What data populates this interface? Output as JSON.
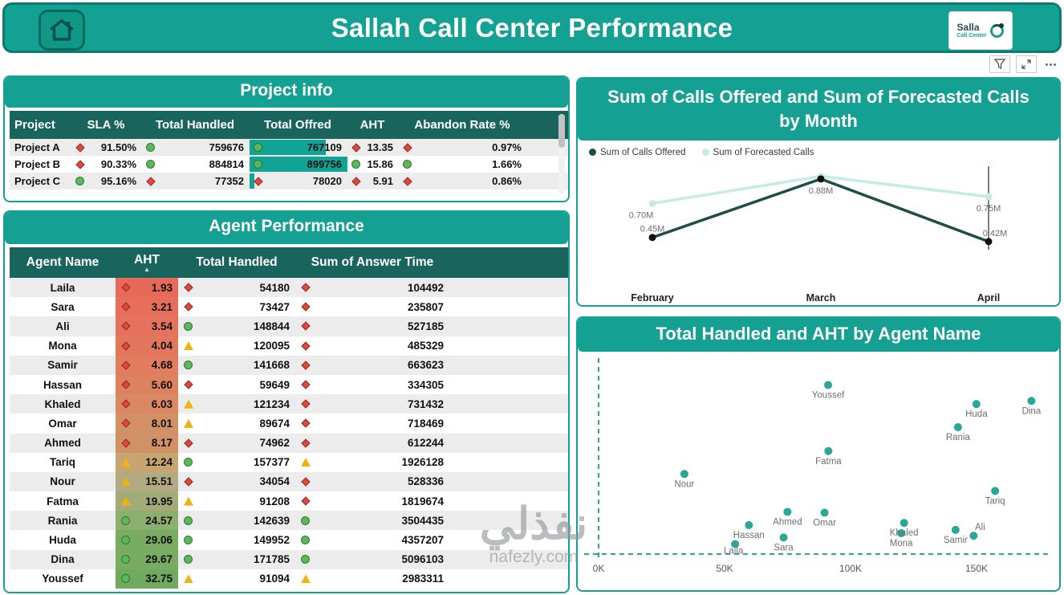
{
  "header": {
    "title": "Sallah Call Center Performance",
    "logo": {
      "line1": "Salla",
      "line2": "Call Center"
    }
  },
  "toolbar": {
    "more_label": "⋯"
  },
  "project_info": {
    "title": "Project info",
    "columns": [
      "Project",
      "SLA %",
      "Total Handled",
      "Total Offred",
      "AHT",
      "Abandon Rate %"
    ],
    "rows": [
      {
        "project": "Project A",
        "sla": {
          "icon": "diamond-red",
          "value": "91.50%"
        },
        "handled": {
          "icon": "circle-green",
          "value": "759676"
        },
        "offred": {
          "icon": "circle-green",
          "value": "767109",
          "bar_pct": 78
        },
        "aht": {
          "icon": "diamond-red",
          "value": "13.35"
        },
        "abandon": {
          "icon": "diamond-red",
          "value": "0.97%"
        }
      },
      {
        "project": "Project B",
        "sla": {
          "icon": "diamond-red",
          "value": "90.33%"
        },
        "handled": {
          "icon": "circle-green",
          "value": "884814"
        },
        "offred": {
          "icon": "circle-green",
          "value": "899756",
          "bar_pct": 100
        },
        "aht": {
          "icon": "circle-green",
          "value": "15.86"
        },
        "abandon": {
          "icon": "circle-green",
          "value": "1.66%"
        }
      },
      {
        "project": "Project C",
        "sla": {
          "icon": "circle-green",
          "value": "95.16%"
        },
        "handled": {
          "icon": "diamond-red",
          "value": "77352"
        },
        "offred": {
          "icon": "diamond-red",
          "value": "78020",
          "bar_pct": 5
        },
        "aht": {
          "icon": "diamond-red",
          "value": "5.91"
        },
        "abandon": {
          "icon": "diamond-red",
          "value": "0.86%"
        }
      }
    ]
  },
  "agent_performance": {
    "title": "Agent Performance",
    "columns": [
      "Agent Name",
      "AHT",
      "Total Handled",
      "Sum of Answer Time"
    ],
    "rows": [
      {
        "name": "Laila",
        "aht": {
          "value": "1.93",
          "bg": "#e7695a",
          "icon": "diamond-red"
        },
        "handled": {
          "icon": "diamond-red",
          "value": "54180"
        },
        "answer": {
          "icon": "diamond-red",
          "value": "104492"
        }
      },
      {
        "name": "Sara",
        "aht": {
          "value": "3.21",
          "bg": "#e66e5b",
          "icon": "diamond-red"
        },
        "handled": {
          "icon": "diamond-red",
          "value": "73427"
        },
        "answer": {
          "icon": "diamond-red",
          "value": "235807"
        }
      },
      {
        "name": "Ali",
        "aht": {
          "value": "3.54",
          "bg": "#e4725c",
          "icon": "diamond-red"
        },
        "handled": {
          "icon": "circle-green",
          "value": "148844"
        },
        "answer": {
          "icon": "diamond-red",
          "value": "527185"
        }
      },
      {
        "name": "Mona",
        "aht": {
          "value": "4.04",
          "bg": "#e3775e",
          "icon": "diamond-red"
        },
        "handled": {
          "icon": "triangle-yellow",
          "value": "120095"
        },
        "answer": {
          "icon": "diamond-red",
          "value": "485329"
        }
      },
      {
        "name": "Samir",
        "aht": {
          "value": "4.68",
          "bg": "#e17c5f",
          "icon": "diamond-red"
        },
        "handled": {
          "icon": "circle-green",
          "value": "141668"
        },
        "answer": {
          "icon": "diamond-red",
          "value": "663623"
        }
      },
      {
        "name": "Hassan",
        "aht": {
          "value": "5.60",
          "bg": "#de815f",
          "icon": "diamond-red"
        },
        "handled": {
          "icon": "diamond-red",
          "value": "59649"
        },
        "answer": {
          "icon": "diamond-red",
          "value": "334305"
        }
      },
      {
        "name": "Khaled",
        "aht": {
          "value": "6.03",
          "bg": "#da8763",
          "icon": "diamond-red"
        },
        "handled": {
          "icon": "triangle-yellow",
          "value": "121234"
        },
        "answer": {
          "icon": "diamond-red",
          "value": "731432"
        }
      },
      {
        "name": "Omar",
        "aht": {
          "value": "8.01",
          "bg": "#d29065",
          "icon": "diamond-red"
        },
        "handled": {
          "icon": "triangle-yellow",
          "value": "89674"
        },
        "answer": {
          "icon": "diamond-red",
          "value": "718469"
        }
      },
      {
        "name": "Ahmed",
        "aht": {
          "value": "8.17",
          "bg": "#d19166",
          "icon": "diamond-red"
        },
        "handled": {
          "icon": "diamond-red",
          "value": "74962"
        },
        "answer": {
          "icon": "diamond-red",
          "value": "612244"
        }
      },
      {
        "name": "Tariq",
        "aht": {
          "value": "12.24",
          "bg": "#c7a571",
          "icon": "triangle-yellow"
        },
        "handled": {
          "icon": "circle-green",
          "value": "157377"
        },
        "answer": {
          "icon": "triangle-yellow",
          "value": "1926128"
        }
      },
      {
        "name": "Nour",
        "aht": {
          "value": "15.51",
          "bg": "#b2aa80",
          "icon": "triangle-yellow"
        },
        "handled": {
          "icon": "diamond-red",
          "value": "34054"
        },
        "answer": {
          "icon": "diamond-red",
          "value": "528336"
        }
      },
      {
        "name": "Fatma",
        "aht": {
          "value": "19.95",
          "bg": "#a3ac79",
          "icon": "triangle-yellow"
        },
        "handled": {
          "icon": "triangle-yellow",
          "value": "91208"
        },
        "answer": {
          "icon": "diamond-red",
          "value": "1819674"
        }
      },
      {
        "name": "Rania",
        "aht": {
          "value": "24.57",
          "bg": "#8caf6d",
          "icon": "circle-green"
        },
        "handled": {
          "icon": "circle-green",
          "value": "142639"
        },
        "answer": {
          "icon": "circle-green",
          "value": "3504435"
        }
      },
      {
        "name": "Huda",
        "aht": {
          "value": "29.06",
          "bg": "#79ac63",
          "icon": "circle-green"
        },
        "handled": {
          "icon": "circle-green",
          "value": "149952"
        },
        "answer": {
          "icon": "circle-green",
          "value": "4357207"
        }
      },
      {
        "name": "Dina",
        "aht": {
          "value": "29.67",
          "bg": "#78ac62",
          "icon": "circle-green"
        },
        "handled": {
          "icon": "circle-green",
          "value": "171785"
        },
        "answer": {
          "icon": "circle-green",
          "value": "5096103"
        }
      },
      {
        "name": "Youssef",
        "aht": {
          "value": "32.75",
          "bg": "#6faa5e",
          "icon": "circle-green"
        },
        "handled": {
          "icon": "triangle-yellow",
          "value": "91094"
        },
        "answer": {
          "icon": "triangle-yellow",
          "value": "2983311"
        }
      }
    ]
  },
  "chart_data": [
    {
      "type": "line",
      "title": "Sum of Calls Offered and Sum of Forecasted Calls by Month",
      "categories": [
        "February",
        "March",
        "April"
      ],
      "series": [
        {
          "name": "Sum of Calls Offered",
          "color": "#1d4f49",
          "point_color": "#111111",
          "values_M": [
            0.45,
            0.88,
            0.42
          ],
          "labels": [
            "0.45M",
            "0.88M",
            "0.42M"
          ]
        },
        {
          "name": "Sum of Forecasted Calls",
          "color": "#c5ebe2",
          "point_color": "#c5ebe2",
          "values_M": [
            0.7,
            0.9,
            0.75
          ],
          "labels": [
            "0.70M",
            "",
            "0.75M"
          ]
        }
      ],
      "ylim_M": [
        0.36,
        0.95
      ],
      "legend_position": "top-left"
    },
    {
      "type": "scatter",
      "title": "Total Handled and AHT by Agent Name",
      "xlabel": "Total Handled",
      "ylabel": "AHT",
      "point_color": "#2aa796",
      "x_axis": {
        "ticks": [
          "0K",
          "50K",
          "100K",
          "150K"
        ],
        "tick_values": [
          0,
          50000,
          100000,
          150000
        ]
      },
      "ylim": [
        0,
        35
      ],
      "points": [
        {
          "name": "Laila",
          "x": 54180,
          "y": 1.93
        },
        {
          "name": "Sara",
          "x": 73427,
          "y": 3.21
        },
        {
          "name": "Ali",
          "x": 148844,
          "y": 3.54
        },
        {
          "name": "Mona",
          "x": 120095,
          "y": 4.04
        },
        {
          "name": "Samir",
          "x": 141668,
          "y": 4.68
        },
        {
          "name": "Hassan",
          "x": 59649,
          "y": 5.6
        },
        {
          "name": "Khaled",
          "x": 121234,
          "y": 6.03
        },
        {
          "name": "Omar",
          "x": 89674,
          "y": 8.01
        },
        {
          "name": "Ahmed",
          "x": 74962,
          "y": 8.17
        },
        {
          "name": "Tariq",
          "x": 157377,
          "y": 12.24
        },
        {
          "name": "Nour",
          "x": 34054,
          "y": 15.51
        },
        {
          "name": "Fatma",
          "x": 91208,
          "y": 19.95
        },
        {
          "name": "Rania",
          "x": 142639,
          "y": 24.57
        },
        {
          "name": "Huda",
          "x": 149952,
          "y": 29.06
        },
        {
          "name": "Dina",
          "x": 171785,
          "y": 29.67
        },
        {
          "name": "Youssef",
          "x": 91094,
          "y": 32.75
        }
      ]
    }
  ],
  "watermark": {
    "arabic": "نفذلي",
    "latin": "nafezly.com"
  }
}
